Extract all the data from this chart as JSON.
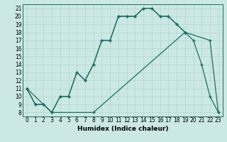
{
  "xlabel": "Humidex (Indice chaleur)",
  "background_color": "#cce8e4",
  "line_color": "#1a6e64",
  "xlim": [
    -0.5,
    23.5
  ],
  "ylim": [
    7.5,
    21.5
  ],
  "xticks": [
    0,
    1,
    2,
    3,
    4,
    5,
    6,
    7,
    8,
    9,
    10,
    11,
    12,
    13,
    14,
    15,
    16,
    17,
    18,
    19,
    20,
    21,
    22,
    23
  ],
  "yticks": [
    8,
    9,
    10,
    11,
    12,
    13,
    14,
    15,
    16,
    17,
    18,
    19,
    20,
    21
  ],
  "line1_x": [
    0,
    1,
    2,
    3,
    4,
    5,
    6,
    7,
    8,
    9,
    10,
    11,
    12,
    13,
    14,
    15,
    16,
    17,
    18,
    19
  ],
  "line1_y": [
    11,
    9,
    9,
    8,
    10,
    10,
    13,
    12,
    14,
    17,
    17,
    20,
    20,
    20,
    21,
    21,
    20,
    20,
    19,
    18
  ],
  "line2_x": [
    0,
    1,
    2,
    3,
    4,
    5,
    6,
    7,
    8,
    9,
    10,
    11,
    12,
    13,
    14,
    15,
    16,
    17,
    18,
    19,
    20,
    21,
    22,
    23
  ],
  "line2_y": [
    11,
    9,
    9,
    8,
    10,
    10,
    13,
    12,
    14,
    17,
    17,
    20,
    20,
    20,
    21,
    21,
    20,
    20,
    19,
    18,
    17,
    14,
    10,
    8
  ],
  "line3_x": [
    0,
    3,
    8,
    19,
    22,
    23
  ],
  "line3_y": [
    11,
    8,
    8,
    18,
    17,
    8
  ],
  "grid_color": "#aad4cc",
  "font_size_xlabel": 6.5,
  "font_size_ticks": 5.5,
  "marker_size": 2.5,
  "line_width": 0.9
}
